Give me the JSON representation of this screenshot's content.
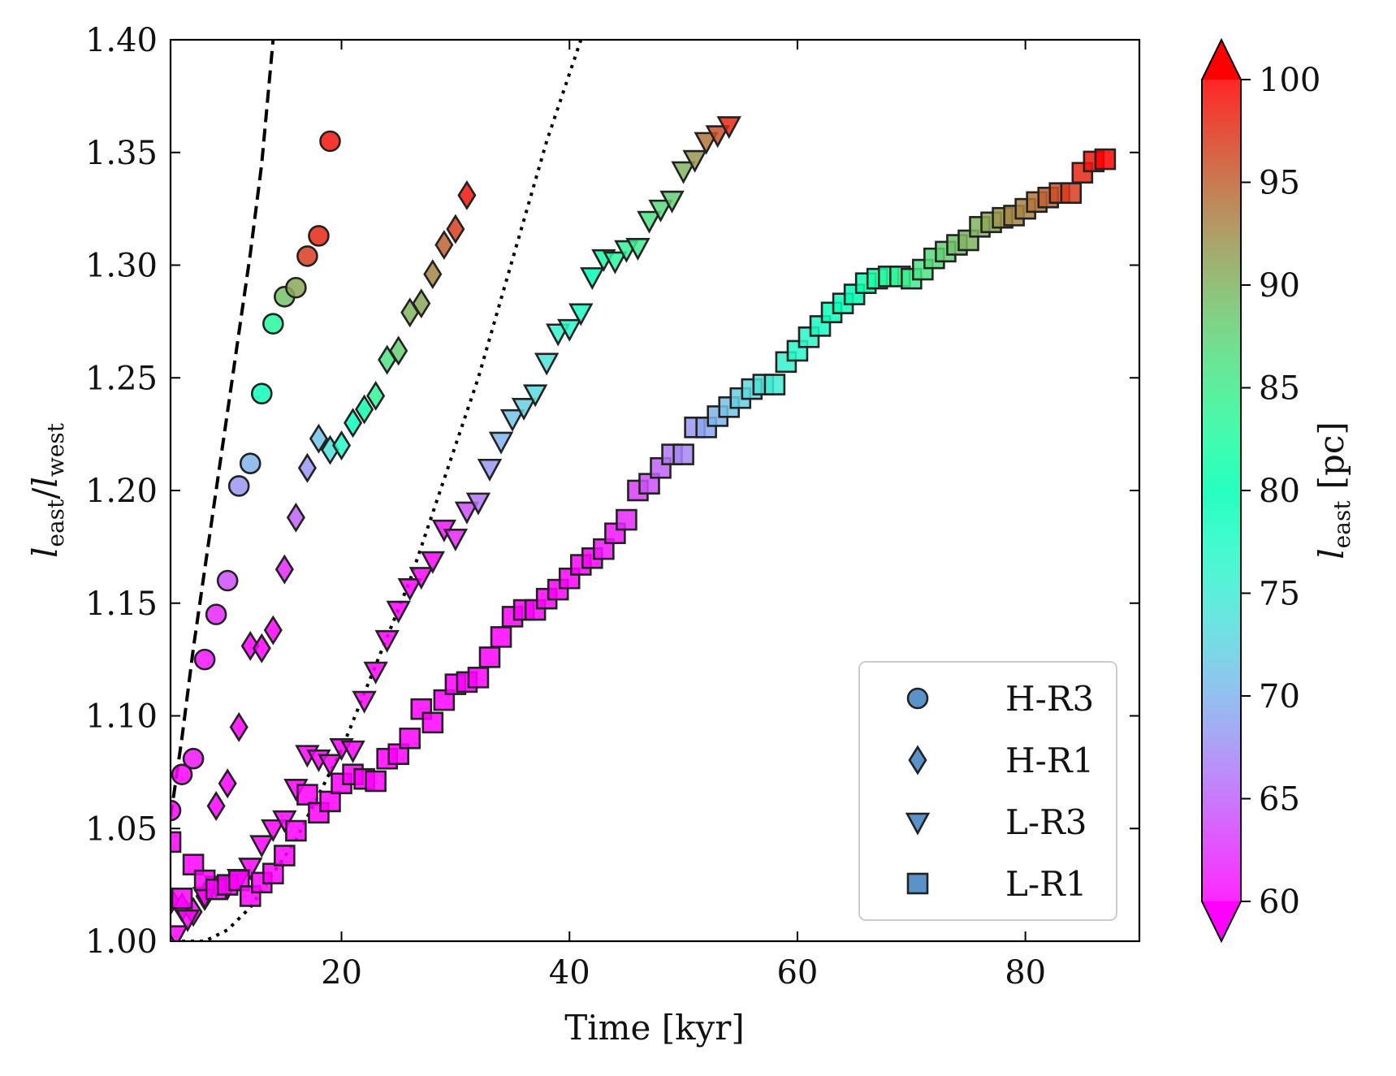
{
  "chart_data": {
    "type": "scatter",
    "title": "",
    "xlabel": "Time [kyr]",
    "ylabel": "l_east / l_west",
    "ylabel_parts": {
      "l1": "l",
      "sub1": "east",
      "slash": "/",
      "l2": "l",
      "sub2": "west"
    },
    "xlim": [
      5,
      90
    ],
    "ylim": [
      1.0,
      1.4
    ],
    "xticks": [
      20,
      40,
      60,
      80
    ],
    "xtick_labels": [
      "20",
      "40",
      "60",
      "80"
    ],
    "yticks": [
      1.0,
      1.05,
      1.1,
      1.15,
      1.2,
      1.25,
      1.3,
      1.35,
      1.4
    ],
    "ytick_labels": [
      "1.00",
      "1.05",
      "1.10",
      "1.15",
      "1.20",
      "1.25",
      "1.30",
      "1.35",
      "1.40"
    ],
    "legend_position": "bottom-right",
    "colorbar": {
      "label_parts": {
        "l": "l",
        "sub": "east",
        "unit": "[pc]"
      },
      "min": 60,
      "max": 100,
      "ticks": [
        60,
        65,
        70,
        75,
        80,
        85,
        90,
        95,
        100
      ],
      "tick_labels": [
        "60",
        "65",
        "70",
        "75",
        "80",
        "85",
        "90",
        "95",
        "100"
      ],
      "colormap": "rainbow",
      "extend": "both"
    },
    "reference_lines": [
      {
        "style": "dashed",
        "color": "#000000",
        "x": [
          5,
          6,
          7,
          8,
          9,
          10,
          11,
          12,
          13,
          14
        ],
        "y": [
          1.055,
          1.09,
          1.13,
          1.165,
          1.2,
          1.235,
          1.27,
          1.305,
          1.345,
          1.4
        ]
      },
      {
        "style": "dotted",
        "color": "#000000",
        "x": [
          6,
          8,
          10,
          12,
          14,
          16,
          18,
          20,
          22,
          24,
          26,
          28,
          30,
          32,
          34,
          36,
          38,
          41
        ],
        "y": [
          1.0,
          1.0,
          1.005,
          1.015,
          1.03,
          1.045,
          1.065,
          1.085,
          1.11,
          1.135,
          1.16,
          1.19,
          1.22,
          1.25,
          1.285,
          1.32,
          1.355,
          1.4
        ]
      }
    ],
    "series": [
      {
        "name": "H-R3",
        "marker": "circle",
        "x": [
          5,
          6,
          7,
          8,
          9,
          10,
          11,
          12,
          13,
          14,
          15,
          16,
          17,
          18,
          19
        ],
        "y": [
          1.058,
          1.074,
          1.081,
          1.125,
          1.145,
          1.16,
          1.202,
          1.212,
          1.243,
          1.274,
          1.286,
          1.29,
          1.304,
          1.313,
          1.355
        ],
        "l_east": [
          60,
          60,
          61,
          61,
          62,
          64,
          68,
          70,
          79,
          83,
          89,
          91,
          97,
          98,
          99
        ]
      },
      {
        "name": "H-R1",
        "marker": "diamond",
        "x": [
          5,
          6,
          7,
          8,
          9,
          10,
          11,
          12,
          13,
          14,
          15,
          16,
          17,
          18,
          19,
          20,
          21,
          22,
          23,
          24,
          25,
          26,
          27,
          28,
          29,
          30,
          31
        ],
        "y": [
          1.018,
          1.015,
          1.013,
          1.02,
          1.06,
          1.07,
          1.095,
          1.131,
          1.13,
          1.138,
          1.165,
          1.188,
          1.21,
          1.223,
          1.218,
          1.22,
          1.23,
          1.236,
          1.242,
          1.258,
          1.262,
          1.279,
          1.283,
          1.296,
          1.309,
          1.316,
          1.331
        ],
        "l_east": [
          60,
          60,
          60,
          60,
          60,
          60,
          60,
          60,
          60,
          60,
          62,
          65,
          68,
          71,
          74,
          77,
          79,
          81,
          84,
          86,
          88,
          90,
          91,
          93,
          95,
          97,
          99
        ]
      },
      {
        "name": "L-R3",
        "marker": "triangle-down",
        "x": [
          5.5,
          6.5,
          8,
          9,
          10,
          11,
          12,
          13,
          14,
          15,
          16,
          17,
          18,
          19,
          20,
          21,
          22,
          23,
          24,
          25,
          26,
          27,
          28,
          29,
          30,
          31,
          32,
          33,
          34,
          35,
          36,
          37,
          38,
          39,
          40,
          41,
          42,
          43,
          44,
          45,
          46,
          47,
          48,
          49,
          50,
          51,
          52,
          53,
          54
        ],
        "y": [
          1.003,
          1.01,
          1.02,
          1.025,
          1.024,
          1.028,
          1.033,
          1.043,
          1.05,
          1.054,
          1.068,
          1.083,
          1.081,
          1.079,
          1.086,
          1.085,
          1.107,
          1.12,
          1.134,
          1.147,
          1.157,
          1.162,
          1.169,
          1.183,
          1.179,
          1.191,
          1.195,
          1.21,
          1.222,
          1.232,
          1.237,
          1.243,
          1.257,
          1.27,
          1.272,
          1.279,
          1.295,
          1.303,
          1.302,
          1.307,
          1.308,
          1.32,
          1.325,
          1.329,
          1.342,
          1.347,
          1.355,
          1.358,
          1.362
        ],
        "l_east": [
          60,
          60,
          60,
          60,
          60,
          60,
          60,
          60,
          60,
          60,
          60,
          60,
          60,
          60,
          60,
          60,
          60,
          60,
          60,
          60,
          60,
          60,
          60,
          61,
          62,
          64,
          66,
          68,
          70,
          71,
          72,
          73,
          74,
          76,
          77,
          78,
          80,
          82,
          83,
          84,
          85,
          86,
          87,
          88,
          90,
          92,
          94,
          96,
          98
        ]
      },
      {
        "name": "L-R1",
        "marker": "square",
        "x": [
          5,
          6,
          7,
          8,
          9,
          10,
          11,
          12,
          13,
          14,
          15,
          16,
          17,
          18,
          19,
          20,
          21,
          22,
          23,
          24,
          25,
          26,
          27,
          28,
          29,
          30,
          31,
          32,
          33,
          34,
          35,
          36,
          37,
          38,
          39,
          40,
          41,
          42,
          43,
          44,
          45,
          46,
          47,
          48,
          49,
          50,
          51,
          52,
          53,
          54,
          55,
          56,
          57,
          58,
          59,
          60,
          61,
          62,
          63,
          64,
          65,
          66,
          67,
          68,
          69,
          70,
          71,
          72,
          73,
          74,
          75,
          76,
          77,
          78,
          79,
          80,
          81,
          82,
          83,
          84,
          85,
          86,
          87
        ],
        "y": [
          1.044,
          1.019,
          1.034,
          1.027,
          1.023,
          1.025,
          1.027,
          1.02,
          1.026,
          1.03,
          1.038,
          1.049,
          1.065,
          1.057,
          1.062,
          1.07,
          1.074,
          1.072,
          1.071,
          1.081,
          1.083,
          1.09,
          1.103,
          1.097,
          1.107,
          1.114,
          1.115,
          1.117,
          1.126,
          1.135,
          1.144,
          1.147,
          1.147,
          1.152,
          1.156,
          1.161,
          1.167,
          1.17,
          1.174,
          1.181,
          1.187,
          1.2,
          1.203,
          1.21,
          1.216,
          1.216,
          1.228,
          1.228,
          1.233,
          1.237,
          1.241,
          1.245,
          1.247,
          1.247,
          1.257,
          1.262,
          1.268,
          1.273,
          1.279,
          1.283,
          1.287,
          1.292,
          1.294,
          1.295,
          1.295,
          1.294,
          1.298,
          1.303,
          1.306,
          1.309,
          1.311,
          1.317,
          1.319,
          1.321,
          1.322,
          1.325,
          1.328,
          1.33,
          1.332,
          1.332,
          1.341,
          1.346,
          1.347
        ],
        "l_east": [
          60,
          60,
          60,
          60,
          60,
          60,
          60,
          60,
          60,
          60,
          60,
          60,
          60,
          60,
          60,
          60,
          60,
          60,
          60,
          60,
          60,
          60,
          60,
          60,
          60,
          60,
          60,
          60,
          60,
          60,
          60,
          60,
          60,
          60,
          60,
          60,
          60,
          60,
          61,
          61,
          62,
          63,
          64,
          65,
          66,
          67,
          68,
          69,
          70,
          71,
          72,
          73,
          74,
          75,
          76,
          77,
          77,
          78,
          79,
          79,
          80,
          81,
          82,
          83,
          84,
          85,
          86,
          87,
          88,
          89,
          90,
          90,
          91,
          92,
          93,
          93,
          94,
          95,
          96,
          97,
          98,
          99,
          100
        ]
      }
    ]
  }
}
